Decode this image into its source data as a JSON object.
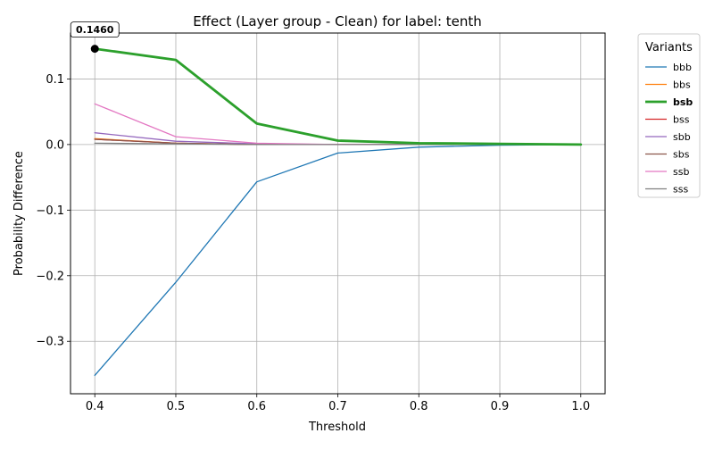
{
  "chart_data": {
    "type": "line",
    "title": "Effect (Layer group - Clean) for label: tenth",
    "xlabel": "Threshold",
    "ylabel": "Probability Difference",
    "xlim": [
      0.37,
      1.03
    ],
    "ylim": [
      -0.38,
      0.17
    ],
    "xticks": [
      0.4,
      0.5,
      0.6,
      0.7,
      0.8,
      0.9,
      1.0
    ],
    "xtick_labels": [
      "0.4",
      "0.5",
      "0.6",
      "0.7",
      "0.8",
      "0.9",
      "1.0"
    ],
    "yticks": [
      -0.3,
      -0.2,
      -0.1,
      0.0,
      0.1
    ],
    "ytick_labels": [
      "−0.3",
      "−0.2",
      "−0.1",
      "0.0",
      "0.1"
    ],
    "grid": true,
    "legend": {
      "title": "Variants",
      "placement": "outside-right"
    },
    "x": [
      0.4,
      0.5,
      0.6,
      0.7,
      0.8,
      0.9,
      1.0
    ],
    "series": [
      {
        "name": "bbb",
        "color": "#1f77b4",
        "highlight": false,
        "values": [
          -0.352,
          -0.21,
          -0.057,
          -0.013,
          -0.004,
          -0.001,
          0.0
        ]
      },
      {
        "name": "bbs",
        "color": "#ff7f0e",
        "highlight": false,
        "values": [
          0.009,
          0.002,
          0.0,
          0.0,
          0.0,
          0.0,
          0.0
        ]
      },
      {
        "name": "bsb",
        "color": "#2ca02c",
        "highlight": true,
        "values": [
          0.146,
          0.129,
          0.032,
          0.006,
          0.002,
          0.001,
          0.0
        ]
      },
      {
        "name": "bss",
        "color": "#d62728",
        "highlight": false,
        "values": [
          0.008,
          0.002,
          0.0,
          0.0,
          0.0,
          0.0,
          0.0
        ]
      },
      {
        "name": "sbb",
        "color": "#9467bd",
        "highlight": false,
        "values": [
          0.018,
          0.005,
          0.001,
          0.0,
          0.0,
          0.0,
          0.0
        ]
      },
      {
        "name": "sbs",
        "color": "#8c564b",
        "highlight": false,
        "values": [
          0.008,
          0.002,
          0.0,
          0.0,
          0.0,
          0.0,
          0.0
        ]
      },
      {
        "name": "ssb",
        "color": "#e377c2",
        "highlight": false,
        "values": [
          0.062,
          0.012,
          0.002,
          0.0,
          0.0,
          0.0,
          0.0
        ]
      },
      {
        "name": "sss",
        "color": "#7f7f7f",
        "highlight": false,
        "values": [
          0.002,
          0.001,
          0.0,
          0.0,
          0.0,
          0.0,
          0.0
        ]
      }
    ],
    "annotation": {
      "text": "0.1460",
      "x": 0.4,
      "y": 0.146
    }
  }
}
